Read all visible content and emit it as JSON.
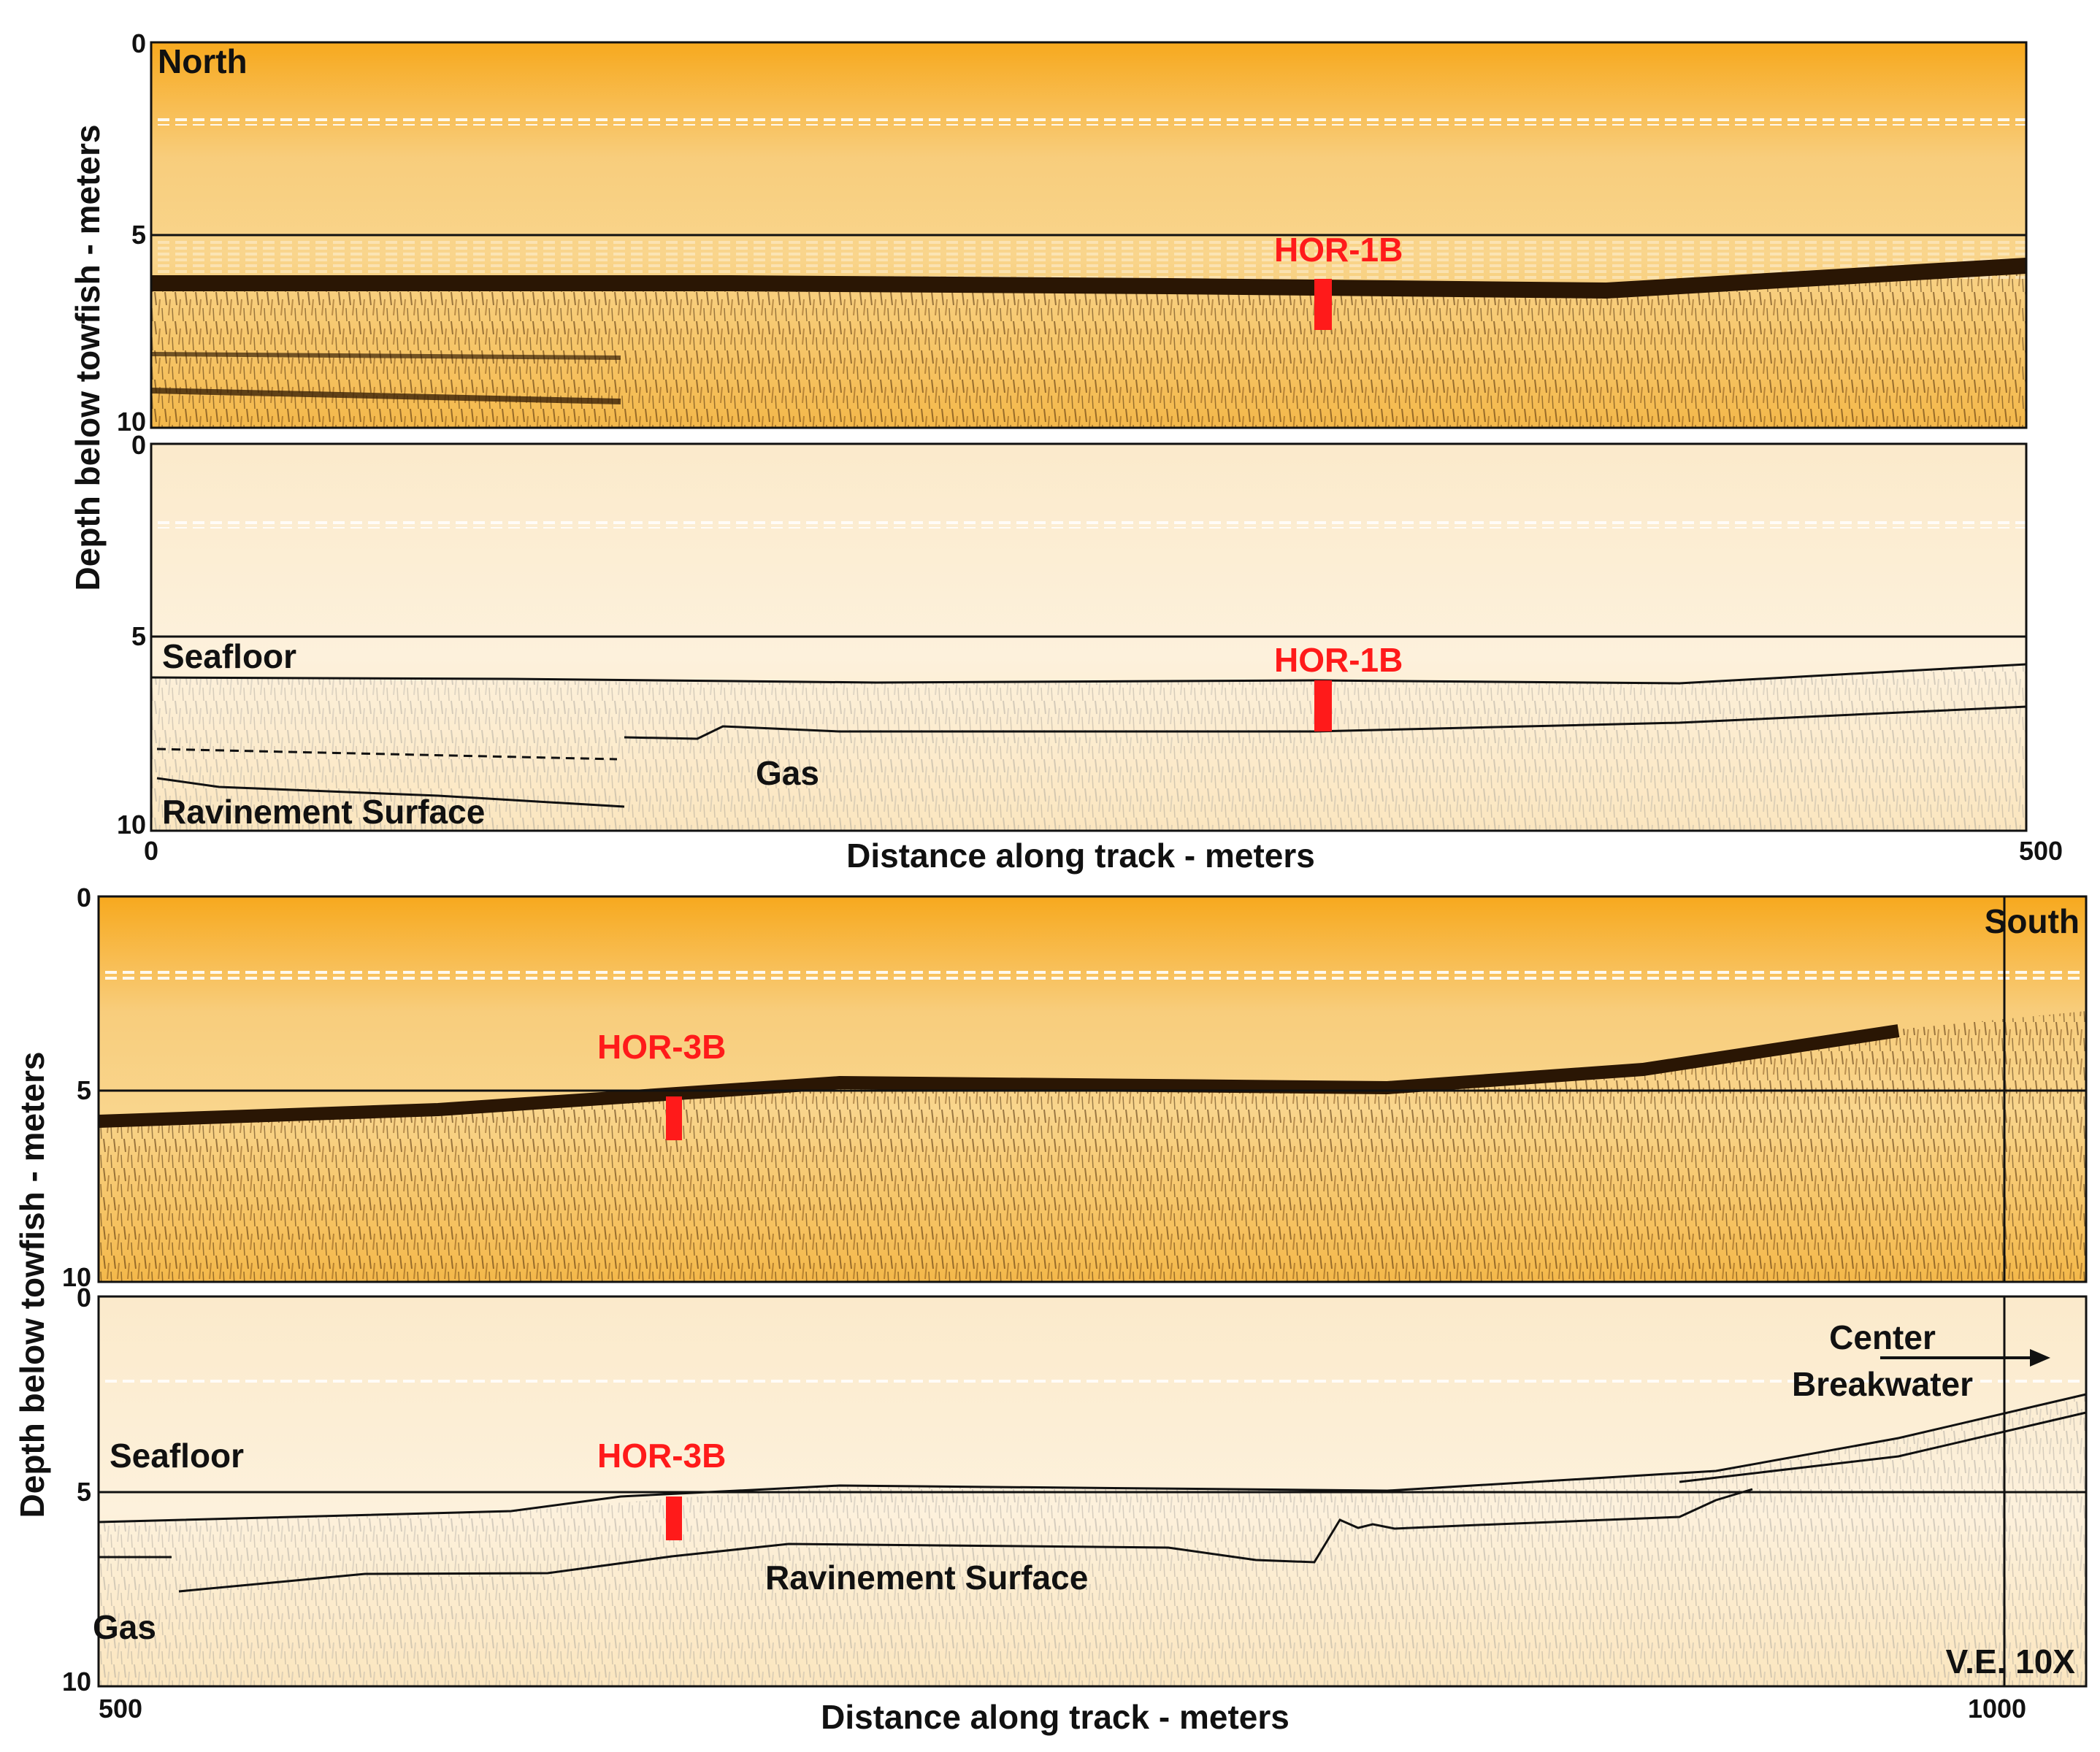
{
  "figure": {
    "colors": {
      "raw_band": "#f4b63a",
      "raw_dark": "#3a2208",
      "interp_band": "#fbe8c2",
      "core_red": "#ff1a1a",
      "line": "#111111"
    },
    "top_pair": {
      "raw_panel": {
        "corner_label": "North",
        "y_ticks": [
          "0",
          "5",
          "10"
        ],
        "core_label": "HOR-1B"
      },
      "interp_panel": {
        "y_ticks": [
          "0",
          "5",
          "10"
        ],
        "core_label": "HOR-1B",
        "seafloor_label": "Seafloor",
        "gas_label": "Gas",
        "ravinement_label": "Ravinement Surface"
      },
      "x_ticks": [
        "0",
        "500"
      ],
      "x_axis_title": "Distance along track - meters",
      "y_axis_title": "Depth below towfish - meters"
    },
    "bottom_pair": {
      "raw_panel": {
        "corner_label": "South",
        "y_ticks": [
          "0",
          "5",
          "10"
        ],
        "core_label": "HOR-3B"
      },
      "interp_panel": {
        "y_ticks": [
          "0",
          "5",
          "10"
        ],
        "core_label": "HOR-3B",
        "seafloor_label": "Seafloor",
        "gas_label": "Gas",
        "ravinement_label": "Ravinement Surface",
        "breakwater_label_1": "Center",
        "breakwater_label_2": "Breakwater",
        "ve_label": "V.E. 10X"
      },
      "x_ticks": [
        "500",
        "1000"
      ],
      "x_axis_title": "Distance along track - meters",
      "y_axis_title": "Depth below towfish - meters"
    }
  }
}
